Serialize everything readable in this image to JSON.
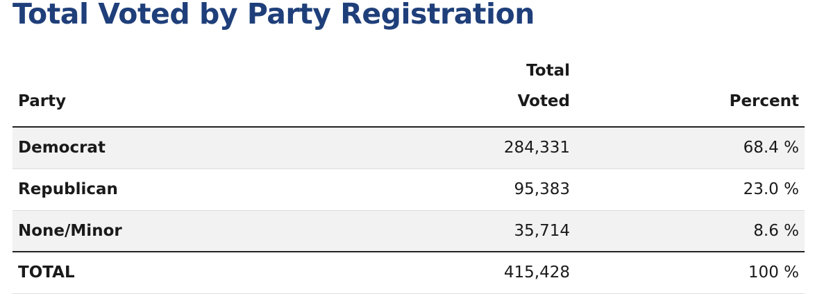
{
  "page": {
    "title": "Total Voted by Party Registration"
  },
  "table": {
    "headers": {
      "party": "Party",
      "total_line1": "Total",
      "total_line2": "Voted",
      "percent": "Percent"
    },
    "rows": [
      {
        "party": "Democrat",
        "total": "284,331",
        "percent": "68.4 %"
      },
      {
        "party": "Republican",
        "total": "95,383",
        "percent": "23.0 %"
      },
      {
        "party": "None/Minor",
        "total": "35,714",
        "percent": "8.6 %"
      }
    ],
    "total_row": {
      "party": "TOTAL",
      "total": "415,428",
      "percent": "100 %"
    }
  },
  "colors": {
    "title": "#1f3f7a",
    "row_shade": "#f2f2f2",
    "rule": "#222222"
  }
}
